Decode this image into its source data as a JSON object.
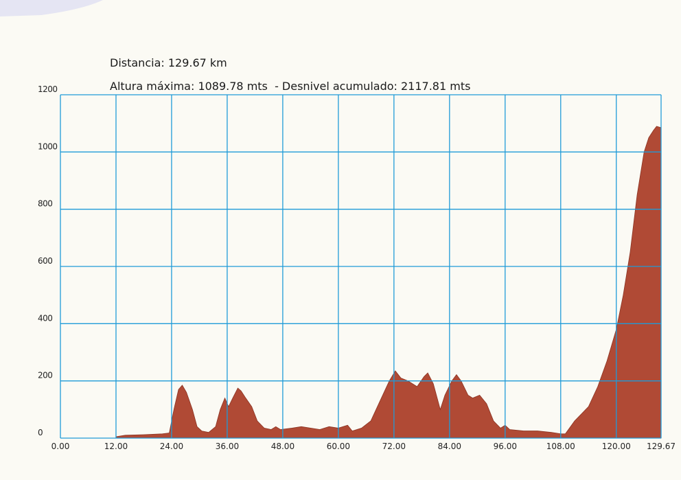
{
  "chart_data": {
    "type": "area",
    "title": "Distancia: 129.67 km",
    "subtitle": "Altura máxima: 1089.78 mts  - Desnivel acumulado: 2117.81 mts",
    "color": "#b04a35",
    "grid_color": "#1f9bd8",
    "grid": true,
    "x": [
      12.0,
      14,
      18,
      22,
      23.5,
      24.5,
      25.5,
      26.3,
      27.2,
      28.5,
      29.5,
      30.5,
      32,
      33.5,
      34.5,
      35.5,
      36.3,
      37.2,
      38.3,
      39,
      40,
      41.3,
      42.5,
      44,
      45.5,
      46.5,
      47.5,
      50,
      52,
      54,
      56,
      58,
      60,
      62,
      63,
      65,
      67,
      69,
      71,
      72.3,
      73.5,
      75,
      77,
      78.5,
      79.3,
      80.5,
      82,
      83,
      84.5,
      85.5,
      86.5,
      88,
      89,
      90.5,
      92,
      93.5,
      95,
      96,
      97,
      100,
      103,
      106,
      108,
      109,
      111,
      114,
      116,
      118,
      120,
      121.5,
      123,
      124.5,
      126,
      127,
      128,
      128.7,
      129.67
    ],
    "values": [
      5,
      10,
      12,
      15,
      18,
      100,
      170,
      185,
      160,
      100,
      40,
      25,
      20,
      40,
      100,
      140,
      110,
      140,
      175,
      165,
      140,
      110,
      60,
      35,
      30,
      40,
      30,
      35,
      40,
      35,
      30,
      40,
      35,
      45,
      25,
      35,
      60,
      130,
      200,
      235,
      210,
      200,
      180,
      215,
      228,
      190,
      100,
      150,
      200,
      222,
      200,
      150,
      140,
      150,
      120,
      60,
      35,
      45,
      30,
      25,
      25,
      20,
      15,
      15,
      60,
      110,
      180,
      270,
      380,
      500,
      650,
      850,
      1000,
      1050,
      1075,
      1089.78,
      1085
    ],
    "xlim": [
      0,
      129.67
    ],
    "xticks": [
      {
        "value": 0,
        "label": "0.00"
      },
      {
        "value": 12,
        "label": "12.00"
      },
      {
        "value": 24,
        "label": "24.00"
      },
      {
        "value": 36,
        "label": "36.00"
      },
      {
        "value": 48,
        "label": "48.00"
      },
      {
        "value": 60,
        "label": "60.00"
      },
      {
        "value": 72,
        "label": "72.00"
      },
      {
        "value": 84,
        "label": "84.00"
      },
      {
        "value": 96,
        "label": "96.00"
      },
      {
        "value": 108,
        "label": "108.00"
      },
      {
        "value": 120,
        "label": "120.00"
      },
      {
        "value": 129.67,
        "label": "129.67"
      }
    ],
    "ylim": [
      0,
      1200
    ],
    "yticks": [
      0,
      200,
      400,
      600,
      800,
      1000,
      1200
    ]
  }
}
